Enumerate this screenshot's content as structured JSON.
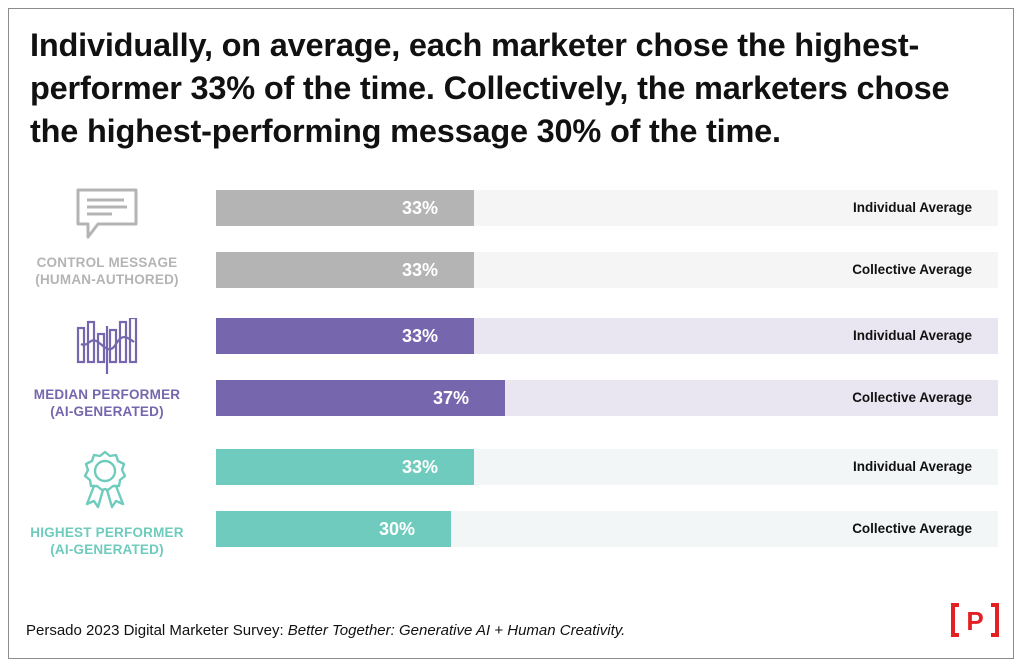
{
  "title": "Individually, on average, each marketer chose the highest-performer 33% of the time. Collectively, the marketers chose the highest-performing message 30% of the time.",
  "groups": [
    {
      "label_line1": "CONTROL MESSAGE",
      "label_line2": "(HUMAN-AUTHORED)",
      "icon": "message-icon",
      "color": "#b4b4b4",
      "track_color": "#f5f5f5"
    },
    {
      "label_line1": "MEDIAN PERFORMER",
      "label_line2": "(AI-GENERATED)",
      "icon": "waveform-icon",
      "color": "#7666ad",
      "track_color": "#e9e6f1"
    },
    {
      "label_line1": "HIGHEST PERFORMER",
      "label_line2": "(AI-GENERATED)",
      "icon": "award-ribbon-icon",
      "color": "#6fcbbd",
      "track_color": "#f2f6f6"
    }
  ],
  "chart_data": {
    "type": "bar",
    "orientation": "horizontal",
    "xlim": [
      0,
      100
    ],
    "bars": [
      {
        "group": "CONTROL MESSAGE (HUMAN-AUTHORED)",
        "series": "Individual Average",
        "value": 33,
        "value_label": "33%"
      },
      {
        "group": "CONTROL MESSAGE (HUMAN-AUTHORED)",
        "series": "Collective Average",
        "value": 33,
        "value_label": "33%"
      },
      {
        "group": "MEDIAN PERFORMER (AI-GENERATED)",
        "series": "Individual Average",
        "value": 33,
        "value_label": "33%"
      },
      {
        "group": "MEDIAN PERFORMER (AI-GENERATED)",
        "series": "Collective Average",
        "value": 37,
        "value_label": "37%"
      },
      {
        "group": "HIGHEST PERFORMER (AI-GENERATED)",
        "series": "Individual Average",
        "value": 33,
        "value_label": "33%"
      },
      {
        "group": "HIGHEST PERFORMER (AI-GENERATED)",
        "series": "Collective Average",
        "value": 30,
        "value_label": "30%"
      }
    ]
  },
  "source": {
    "prefix": "Persado 2023 Digital Marketer Survey: ",
    "title": "Better Together: Generative AI + Human Creativity."
  },
  "logo": {
    "letter": "P",
    "color": "#e32124"
  }
}
